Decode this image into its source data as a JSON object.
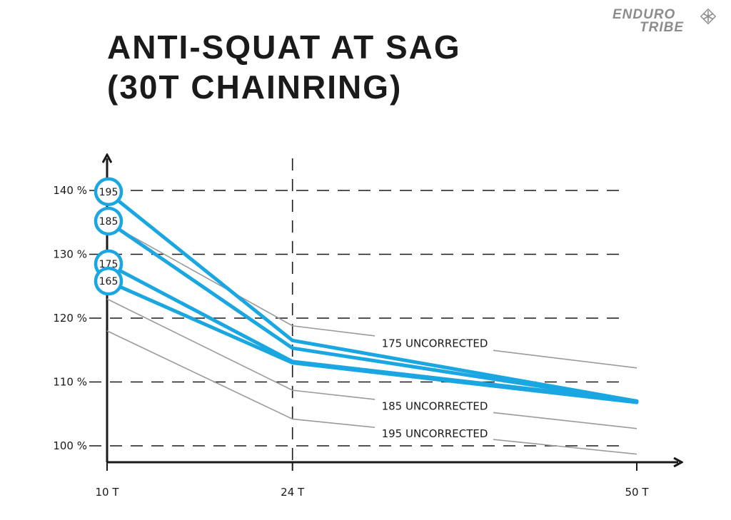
{
  "title": {
    "line1": "ANTI-SQUAT AT SAG",
    "line2": "(30T CHAINRING)"
  },
  "logo": {
    "line1": "ENDURO",
    "line2": "TRIBE"
  },
  "colors": {
    "accent": "#1aa7e1",
    "uncorrected": "#9a9a9a",
    "axis": "#1a1a1a"
  },
  "chart_data": {
    "type": "line",
    "title": "ANTI-SQUAT AT SAG (30T CHAINRING)",
    "xlabel": "",
    "ylabel": "",
    "categories": [
      "10 T",
      "24 T",
      "50 T"
    ],
    "x": [
      10,
      24,
      50
    ],
    "xlim": [
      10,
      52
    ],
    "ylim": [
      98,
      145
    ],
    "y_ticks": [
      100,
      110,
      120,
      130,
      140
    ],
    "y_tick_labels": [
      "100 %",
      "110 %",
      "120 %",
      "130 %",
      "140 %"
    ],
    "grid": "dashed horizontal",
    "series": [
      {
        "name": "195",
        "kind": "corrected",
        "values": [
          139.8,
          116.5,
          107.0
        ]
      },
      {
        "name": "185",
        "kind": "corrected",
        "values": [
          135.2,
          115.3,
          107.0
        ]
      },
      {
        "name": "175",
        "kind": "corrected",
        "values": [
          128.5,
          113.2,
          107.0
        ]
      },
      {
        "name": "165",
        "kind": "corrected",
        "values": [
          125.8,
          113.0,
          106.8
        ]
      },
      {
        "name": "175 UNCORRECTED",
        "kind": "uncorrected",
        "values": [
          135.0,
          118.8,
          112.2
        ]
      },
      {
        "name": "185 UNCORRECTED",
        "kind": "uncorrected",
        "values": [
          123.0,
          108.7,
          102.7
        ]
      },
      {
        "name": "195 UNCORRECTED",
        "kind": "uncorrected",
        "values": [
          118.0,
          104.2,
          98.7
        ]
      }
    ]
  }
}
